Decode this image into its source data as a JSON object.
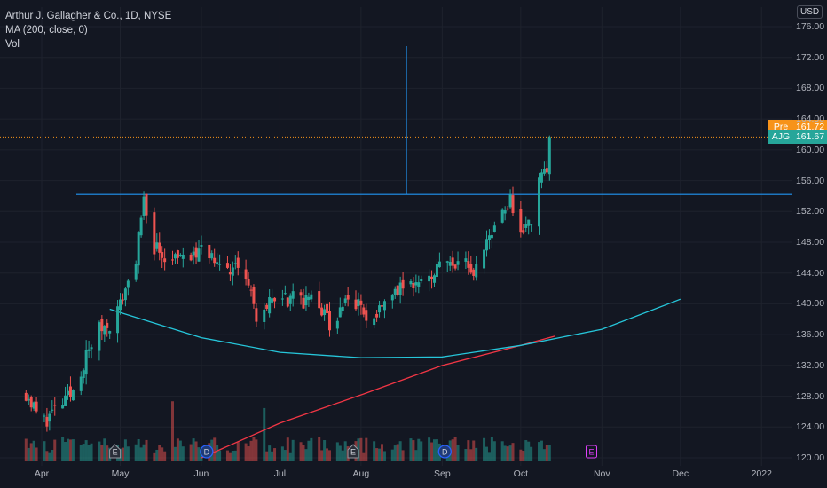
{
  "legend": {
    "title": "Arthur J. Gallagher & Co., 1D, NYSE",
    "ma": "MA (200, close, 0)",
    "vol": "Vol"
  },
  "currency": "USD",
  "tags": {
    "pre_label": "Pre",
    "pre_value": "161.72",
    "ticker_label": "AJG",
    "ticker_value": "161.67"
  },
  "colors": {
    "background": "#131722",
    "up": "#26a69a",
    "down": "#ef5350",
    "ma_line": "#f23645",
    "rim_line": "#2196f3",
    "cup_curve": "#26c6da",
    "pre_tag": "#f7931a",
    "last_tag": "#26a69a"
  },
  "chart_data": {
    "type": "candlestick",
    "symbol": "AJG",
    "timeframe": "1D",
    "y_ticks": [
      "120.00",
      "124.00",
      "128.00",
      "132.00",
      "136.00",
      "140.00",
      "144.00",
      "148.00",
      "152.00",
      "156.00",
      "160.00",
      "164.00",
      "168.00",
      "172.00",
      "176.00"
    ],
    "x_ticks": [
      "Apr",
      "May",
      "Jun",
      "Jul",
      "Aug",
      "Sep",
      "Oct",
      "Nov",
      "Dec",
      "2022"
    ],
    "ylim": [
      119.5,
      177
    ],
    "pre_market": 161.72,
    "last_price": 161.67,
    "rim_level": 154.2,
    "close_anchors": [
      {
        "date": "Mar 26",
        "close": 128.5
      },
      {
        "date": "Apr 1",
        "close": 124.5
      },
      {
        "date": "Apr 12",
        "close": 128.0
      },
      {
        "date": "Apr 22",
        "close": 136.5
      },
      {
        "date": "Apr 29",
        "close": 138.0
      },
      {
        "date": "May 7",
        "close": 146.0
      },
      {
        "date": "May 10",
        "close": 153.0
      },
      {
        "date": "May 14",
        "close": 147.5
      },
      {
        "date": "May 21",
        "close": 145.5
      },
      {
        "date": "May 28",
        "close": 146.0
      },
      {
        "date": "Jun 4",
        "close": 147.0
      },
      {
        "date": "Jun 10",
        "close": 144.5
      },
      {
        "date": "Jun 17",
        "close": 145.0
      },
      {
        "date": "Jun 22",
        "close": 138.5
      },
      {
        "date": "Jun 30",
        "close": 141.0
      },
      {
        "date": "Jul 7",
        "close": 140.5
      },
      {
        "date": "Jul 16",
        "close": 140.0
      },
      {
        "date": "Jul 21",
        "close": 137.0
      },
      {
        "date": "Jul 27",
        "close": 141.5
      },
      {
        "date": "Aug 2",
        "close": 139.0
      },
      {
        "date": "Aug 6",
        "close": 138.0
      },
      {
        "date": "Aug 10",
        "close": 140.5
      },
      {
        "date": "Aug 17",
        "close": 142.0
      },
      {
        "date": "Aug 26",
        "close": 144.0
      },
      {
        "date": "Sep 3",
        "close": 145.0
      },
      {
        "date": "Sep 10",
        "close": 145.5
      },
      {
        "date": "Sep 13",
        "close": 143.5
      },
      {
        "date": "Sep 17",
        "close": 147.0
      },
      {
        "date": "Sep 22",
        "close": 151.5
      },
      {
        "date": "Sep 27",
        "close": 153.5
      },
      {
        "date": "Oct 1",
        "close": 149.5
      },
      {
        "date": "Oct 6",
        "close": 151.0
      },
      {
        "date": "Oct 8",
        "close": 156.5
      },
      {
        "date": "Oct 12",
        "close": 158.5
      },
      {
        "date": "Oct 14",
        "close": 161.67
      }
    ],
    "ma200": [
      {
        "date": "Jun 1",
        "value": 120.0
      },
      {
        "date": "Jul 1",
        "value": 124.5
      },
      {
        "date": "Aug 2",
        "value": 128.3
      },
      {
        "date": "Sep 1",
        "value": 132.0
      },
      {
        "date": "Oct 1",
        "value": 134.6
      },
      {
        "date": "Oct 14",
        "value": 135.8
      }
    ],
    "cup_curve": [
      {
        "date": "Apr 27",
        "value": 139.3
      },
      {
        "date": "Jun 1",
        "value": 135.6
      },
      {
        "date": "Jul 1",
        "value": 133.7
      },
      {
        "date": "Aug 1",
        "value": 133.0
      },
      {
        "date": "Sep 1",
        "value": 133.1
      },
      {
        "date": "Oct 1",
        "value": 134.6
      },
      {
        "date": "Nov 1",
        "value": 136.7
      },
      {
        "date": "Dec 1",
        "value": 140.6
      }
    ],
    "events": [
      {
        "type": "E",
        "date": "Apr 29"
      },
      {
        "type": "D",
        "date": "Jun 3"
      },
      {
        "type": "E",
        "date": "Jul 29"
      },
      {
        "type": "D",
        "date": "Sep 2"
      },
      {
        "type": "E",
        "date": "Oct 28"
      }
    ],
    "volume_spike_dates": [
      "May 12",
      "May 21",
      "Jun 25",
      "Sep 22",
      "Sep 29"
    ]
  }
}
